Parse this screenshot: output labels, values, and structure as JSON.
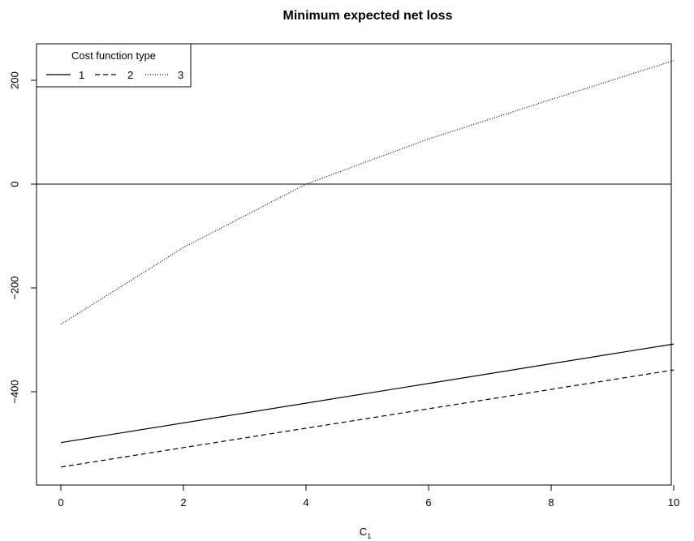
{
  "chart_data": {
    "type": "line",
    "title": "Minimum expected net loss",
    "xlabel": "C",
    "xlabel_subscript": "1",
    "ylabel": "",
    "xlim": [
      0,
      10
    ],
    "ylim": [
      -580,
      270
    ],
    "x_ticks": [
      0,
      2,
      4,
      6,
      8,
      10
    ],
    "y_ticks": [
      -400,
      -200,
      0,
      200
    ],
    "y_tick_labels": [
      "−400",
      "−200",
      "0",
      "200"
    ],
    "hline": 0,
    "grid": false,
    "legend": {
      "title": "Cost function type",
      "placement": "top-left",
      "entries": [
        {
          "label": "1",
          "style": "solid"
        },
        {
          "label": "2",
          "style": "dashed"
        },
        {
          "label": "3",
          "style": "dotted"
        }
      ]
    },
    "series": [
      {
        "name": "1",
        "style": "solid",
        "x": [
          0,
          10
        ],
        "y": [
          -498,
          -308
        ]
      },
      {
        "name": "2",
        "style": "dashed",
        "x": [
          0,
          10
        ],
        "y": [
          -545,
          -358
        ]
      },
      {
        "name": "3",
        "style": "dotted",
        "x": [
          0,
          2,
          4,
          6,
          8,
          10
        ],
        "y": [
          -270,
          -122,
          0,
          87,
          163,
          238
        ]
      }
    ]
  }
}
